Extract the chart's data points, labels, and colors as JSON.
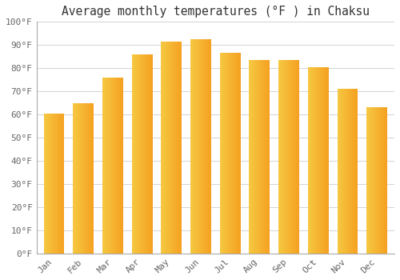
{
  "title": "Average monthly temperatures (°F ) in Chaksu",
  "months": [
    "Jan",
    "Feb",
    "Mar",
    "Apr",
    "May",
    "Jun",
    "Jul",
    "Aug",
    "Sep",
    "Oct",
    "Nov",
    "Dec"
  ],
  "values": [
    60.5,
    65,
    76,
    86,
    91.5,
    92.5,
    86.5,
    83.5,
    83.5,
    80.5,
    71,
    63
  ],
  "bar_color_left": "#F5A623",
  "bar_color_right": "#F5C842",
  "ylim": [
    0,
    100
  ],
  "yticks": [
    0,
    10,
    20,
    30,
    40,
    50,
    60,
    70,
    80,
    90,
    100
  ],
  "ytick_labels": [
    "0°F",
    "10°F",
    "20°F",
    "30°F",
    "40°F",
    "50°F",
    "60°F",
    "70°F",
    "80°F",
    "90°F",
    "100°F"
  ],
  "background_color": "#FFFFFF",
  "grid_color": "#CCCCCC",
  "title_fontsize": 10.5,
  "tick_fontsize": 8,
  "bar_width": 0.7,
  "n_gradient_steps": 100
}
